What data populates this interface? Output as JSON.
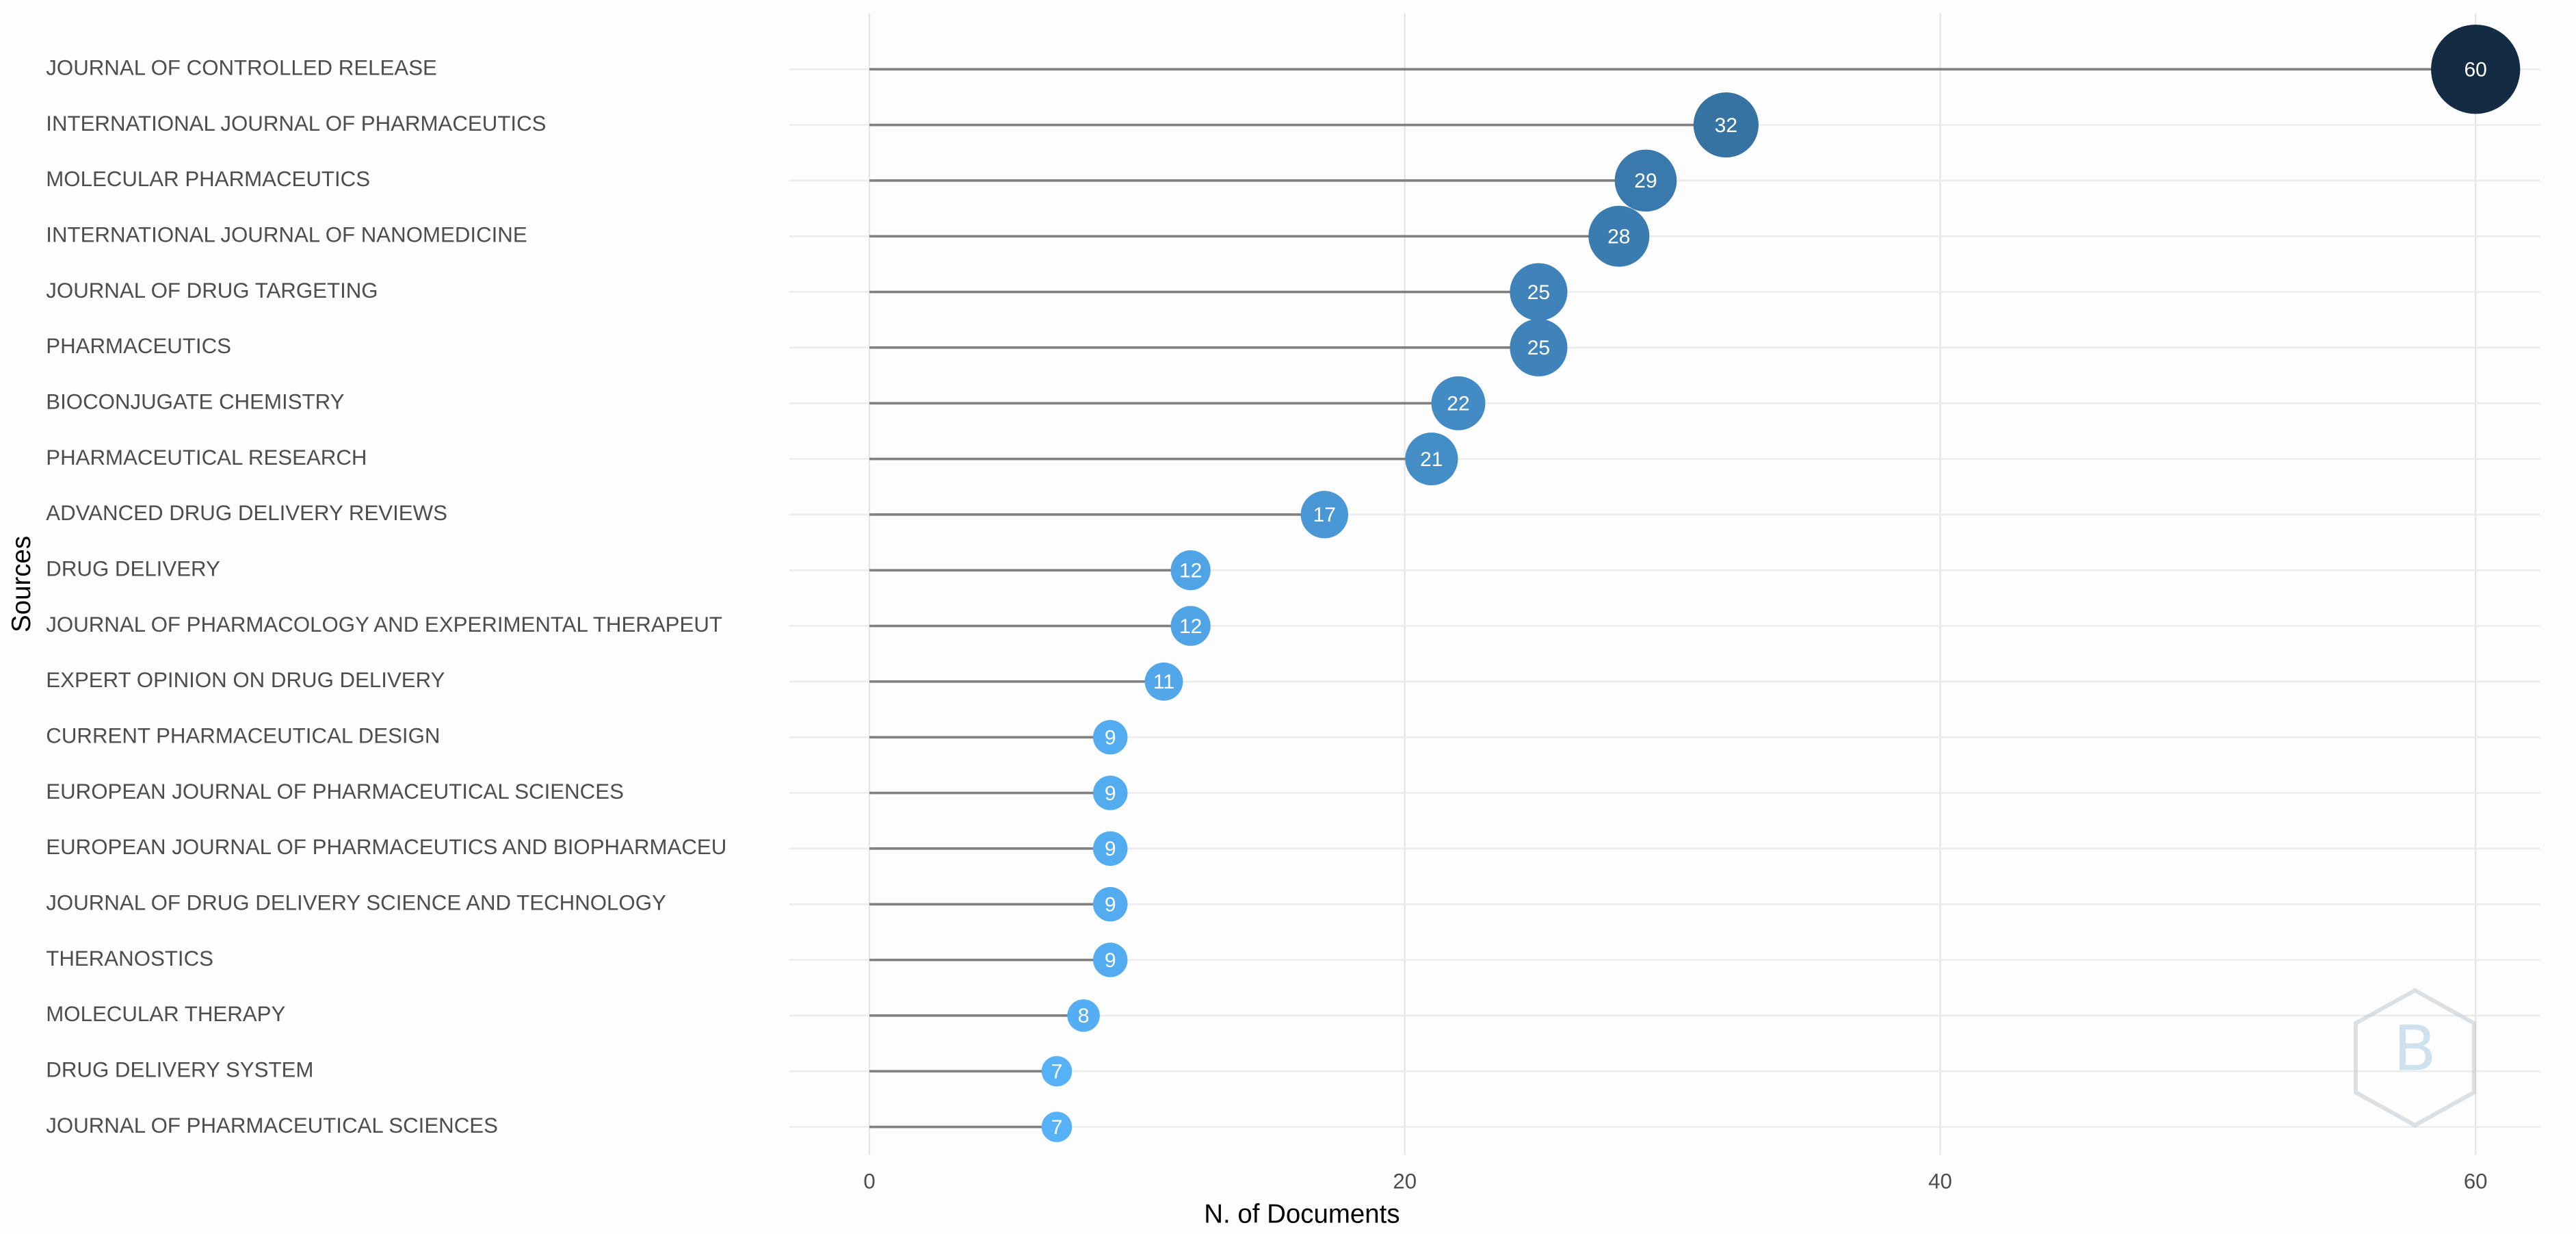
{
  "chart_data": {
    "type": "lollipop",
    "orientation": "horizontal",
    "x_label": "N. of Documents",
    "y_label": "Sources",
    "categories": [
      "JOURNAL OF CONTROLLED RELEASE",
      "INTERNATIONAL JOURNAL OF PHARMACEUTICS",
      "MOLECULAR PHARMACEUTICS",
      "INTERNATIONAL JOURNAL OF NANOMEDICINE",
      "JOURNAL OF DRUG TARGETING",
      "PHARMACEUTICS",
      "BIOCONJUGATE CHEMISTRY",
      "PHARMACEUTICAL RESEARCH",
      "ADVANCED DRUG DELIVERY REVIEWS",
      "DRUG DELIVERY",
      "JOURNAL OF PHARMACOLOGY AND EXPERIMENTAL THERAPEUT",
      "EXPERT OPINION ON DRUG DELIVERY",
      "CURRENT PHARMACEUTICAL DESIGN",
      "EUROPEAN JOURNAL OF PHARMACEUTICAL SCIENCES",
      "EUROPEAN JOURNAL OF PHARMACEUTICS AND BIOPHARMACEU",
      "JOURNAL OF DRUG DELIVERY SCIENCE AND TECHNOLOGY",
      "THERANOSTICS",
      "MOLECULAR THERAPY",
      "DRUG DELIVERY SYSTEM",
      "JOURNAL OF PHARMACEUTICAL SCIENCES"
    ],
    "values": [
      60,
      32,
      29,
      28,
      25,
      25,
      22,
      21,
      17,
      12,
      12,
      11,
      9,
      9,
      9,
      9,
      9,
      8,
      7,
      7
    ],
    "color_scale": [
      "#56B1F7",
      "#132B43"
    ],
    "stem_color": "#808080",
    "xlim": [
      -3,
      62.4
    ],
    "xticks": [
      0,
      20,
      40,
      60
    ],
    "grid": true
  }
}
